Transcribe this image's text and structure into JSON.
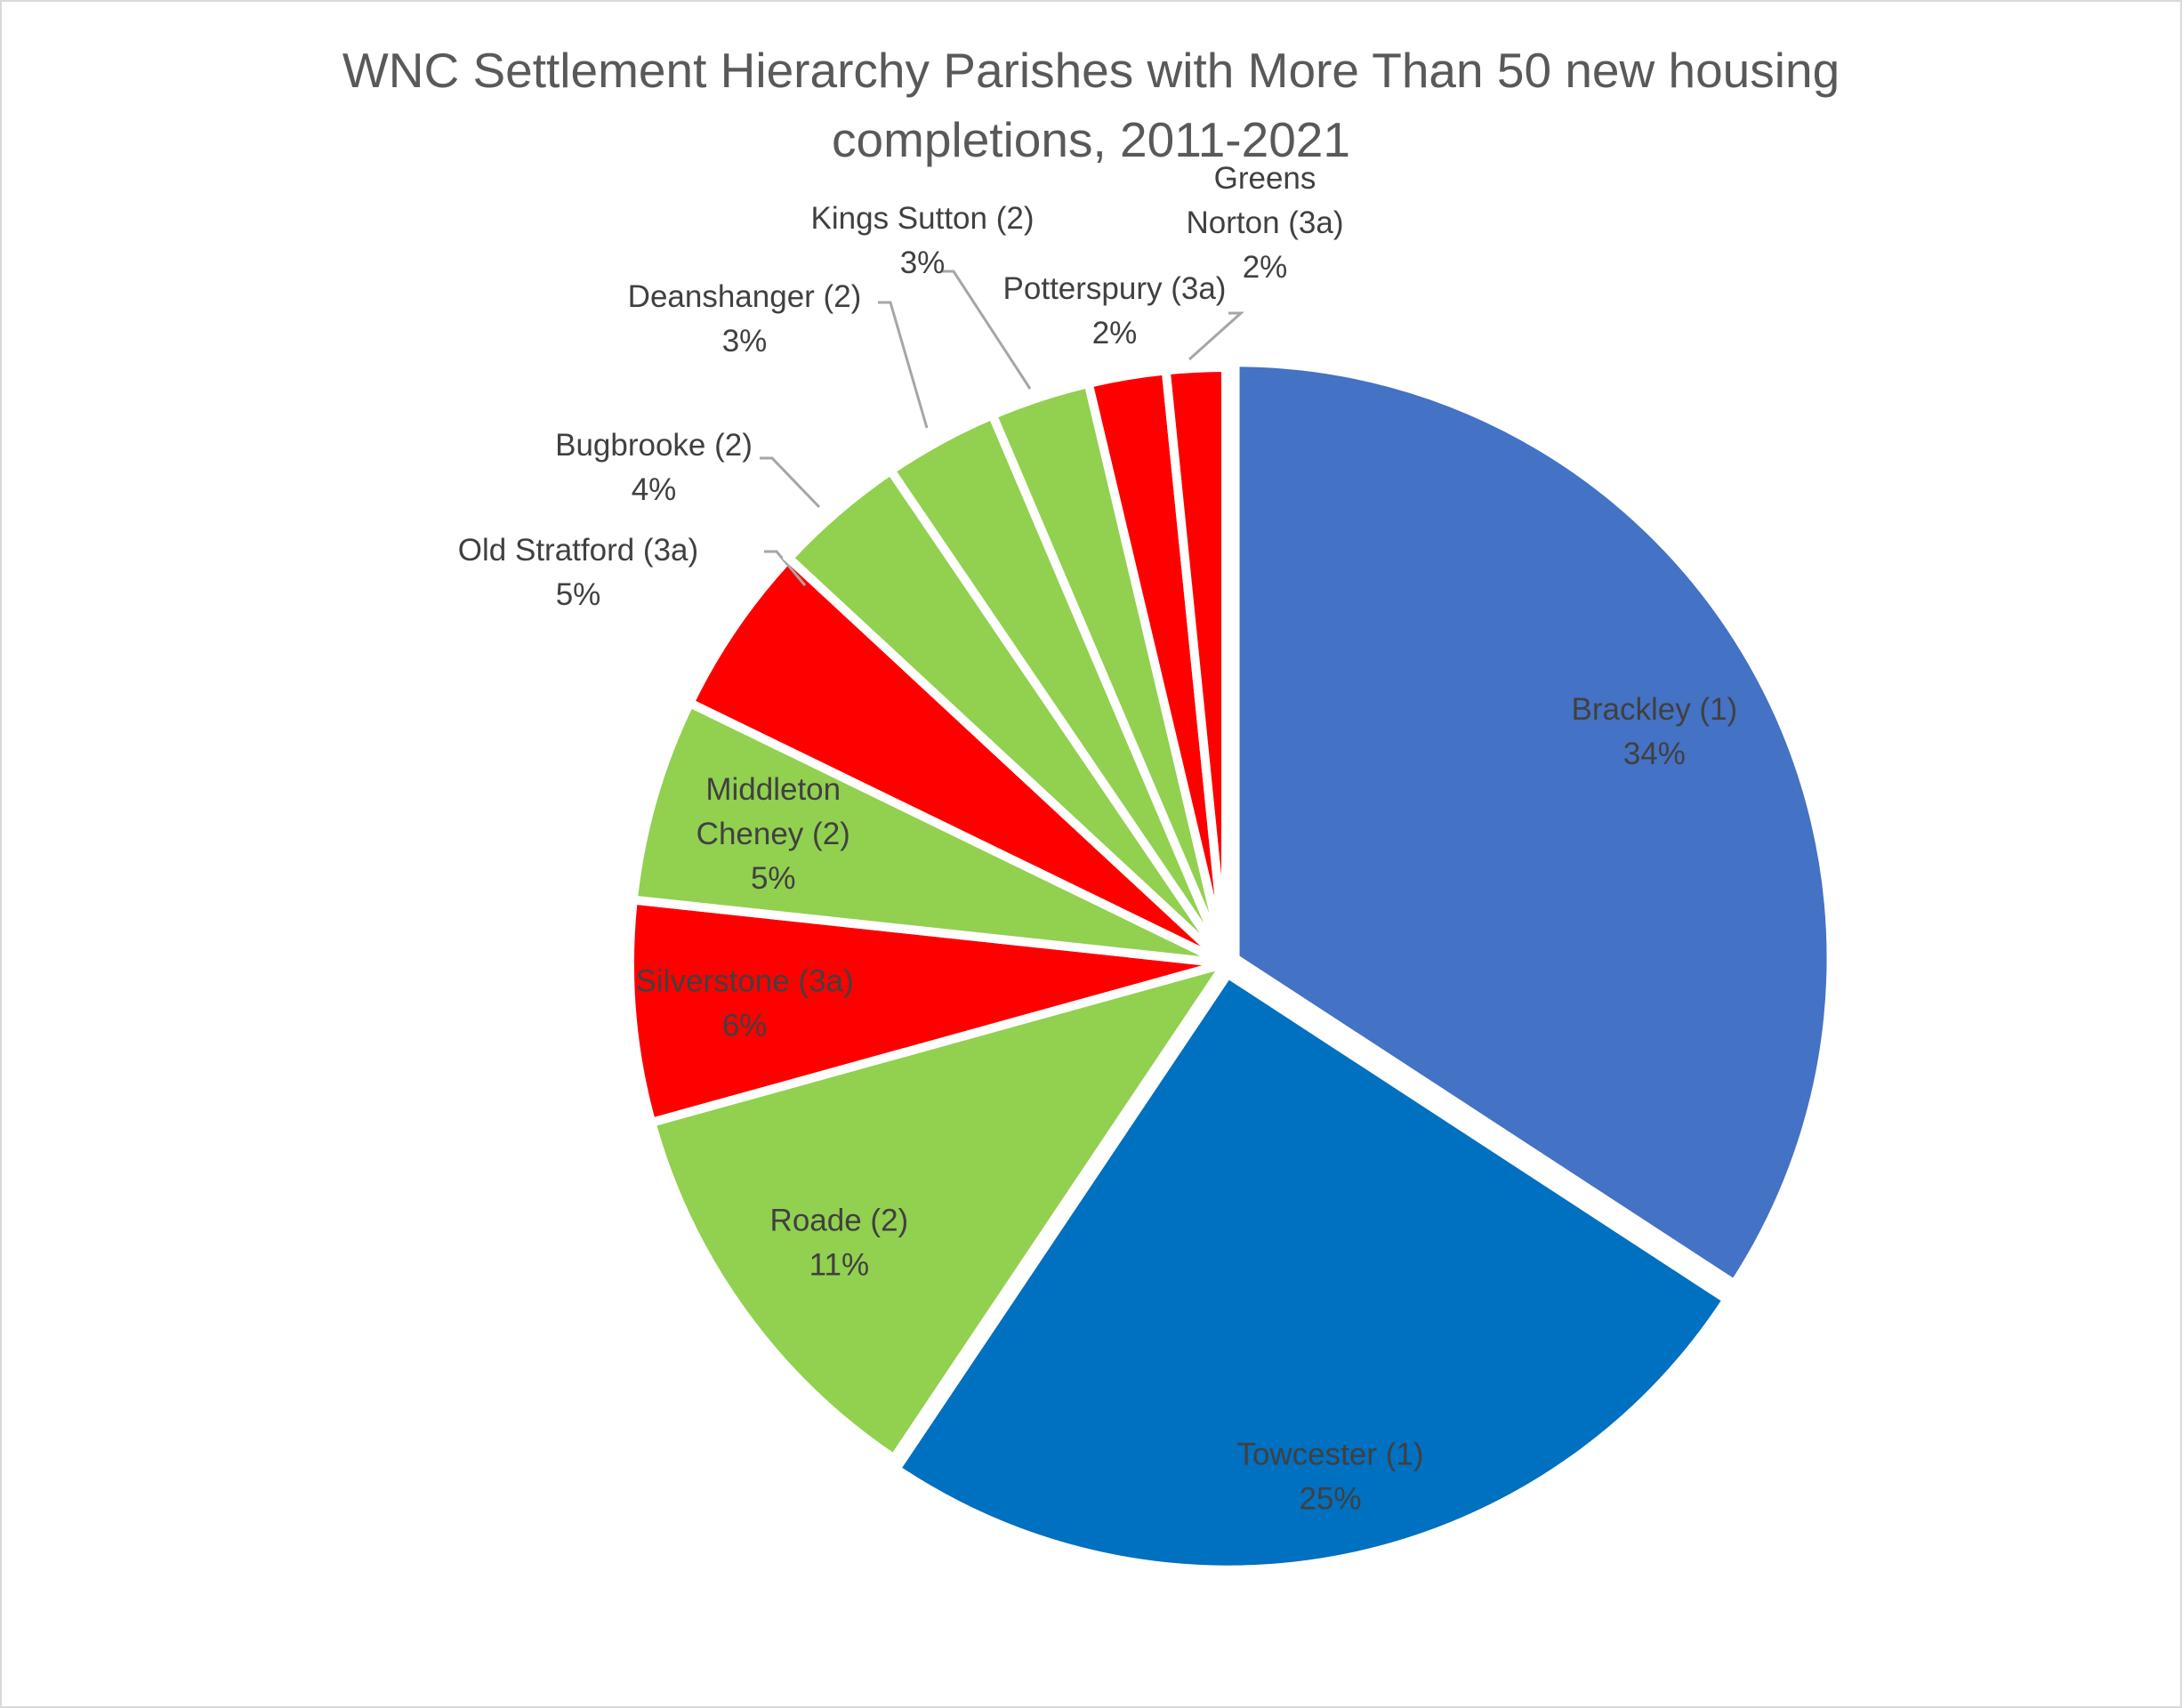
{
  "chart_data": {
    "type": "pie",
    "title_lines": [
      "WNC Settlement Hierarchy Parishes with More Than 50 new housing",
      "completions, 2011-2021"
    ],
    "slices": [
      {
        "label_lines": [
          "Brackley (1)"
        ],
        "percent_label": "34%",
        "value": 34.2,
        "color": "#4472C4"
      },
      {
        "label_lines": [
          "Towcester (1)"
        ],
        "percent_label": "25%",
        "value": 25.2,
        "color": "#0070C0"
      },
      {
        "label_lines": [
          "Roade (2)"
        ],
        "percent_label": "11%",
        "value": 11.3,
        "color": "#92D050"
      },
      {
        "label_lines": [
          "Silverstone (3a)"
        ],
        "percent_label": "6%",
        "value": 6.0,
        "color": "#FF0000"
      },
      {
        "label_lines": [
          "Middleton",
          "Cheney (2)"
        ],
        "percent_label": "5%",
        "value": 5.5,
        "color": "#92D050"
      },
      {
        "label_lines": [
          "Old Stratford (3a)"
        ],
        "percent_label": "5%",
        "value": 4.7,
        "color": "#FF0000"
      },
      {
        "label_lines": [
          "Bugbrooke (2)"
        ],
        "percent_label": "4%",
        "value": 3.6,
        "color": "#92D050"
      },
      {
        "label_lines": [
          "Deanshanger (2)"
        ],
        "percent_label": "3%",
        "value": 3.1,
        "color": "#92D050"
      },
      {
        "label_lines": [
          "Kings Sutton (2)"
        ],
        "percent_label": "3%",
        "value": 2.7,
        "color": "#92D050"
      },
      {
        "label_lines": [
          "Potterspury (3a)"
        ],
        "percent_label": "2%",
        "value": 2.1,
        "color": "#FF0000"
      },
      {
        "label_lines": [
          "Greens",
          "Norton (3a)"
        ],
        "percent_label": "2%",
        "value": 1.6,
        "color": "#FF0000"
      }
    ]
  }
}
